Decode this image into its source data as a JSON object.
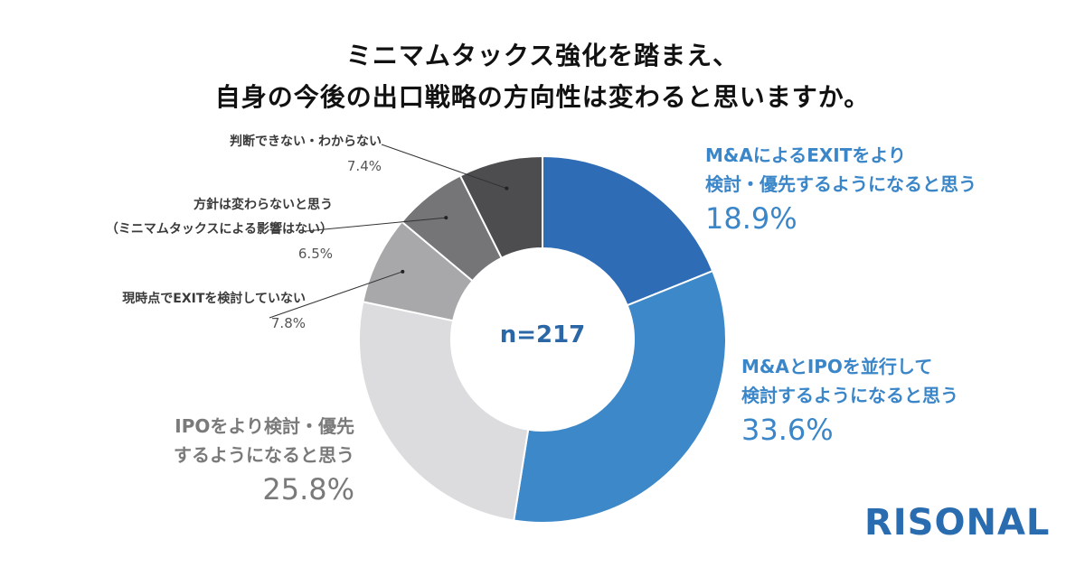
{
  "title_line1": "ミニマムタックス強化を踏まえ、",
  "title_line2": "自身の今後の出口戦略の方向性は変わると思いますか。",
  "center_label": "n=217",
  "logo_text": "RISONAL",
  "chart_data": {
    "type": "pie",
    "donut": true,
    "slices": [
      {
        "lines": [
          "M&AによるEXITをより",
          "検討・優先するようになると思う"
        ],
        "value": 18.9,
        "pct_label": "18.9%",
        "color": "#2e6cb5"
      },
      {
        "lines": [
          "M&AとIPOを並行して",
          "検討するようになると思う"
        ],
        "value": 33.6,
        "pct_label": "33.6%",
        "color": "#3d88c9"
      },
      {
        "lines": [
          "IPOをより検討・優先",
          "するようになると思う"
        ],
        "value": 25.8,
        "pct_label": "25.8%",
        "color": "#dcdcdf"
      },
      {
        "lines": [
          "現時点でEXITを検討していない"
        ],
        "value": 7.8,
        "pct_label": "7.8%",
        "color": "#a8a8aa"
      },
      {
        "lines": [
          "方針は変わらないと思う",
          "（ミニマムタックスによる影響はない）"
        ],
        "value": 6.5,
        "pct_label": "6.5%",
        "color": "#757577"
      },
      {
        "lines": [
          "判断できない・わからない"
        ],
        "value": 7.4,
        "pct_label": "7.4%",
        "color": "#4d4c4e"
      }
    ]
  }
}
